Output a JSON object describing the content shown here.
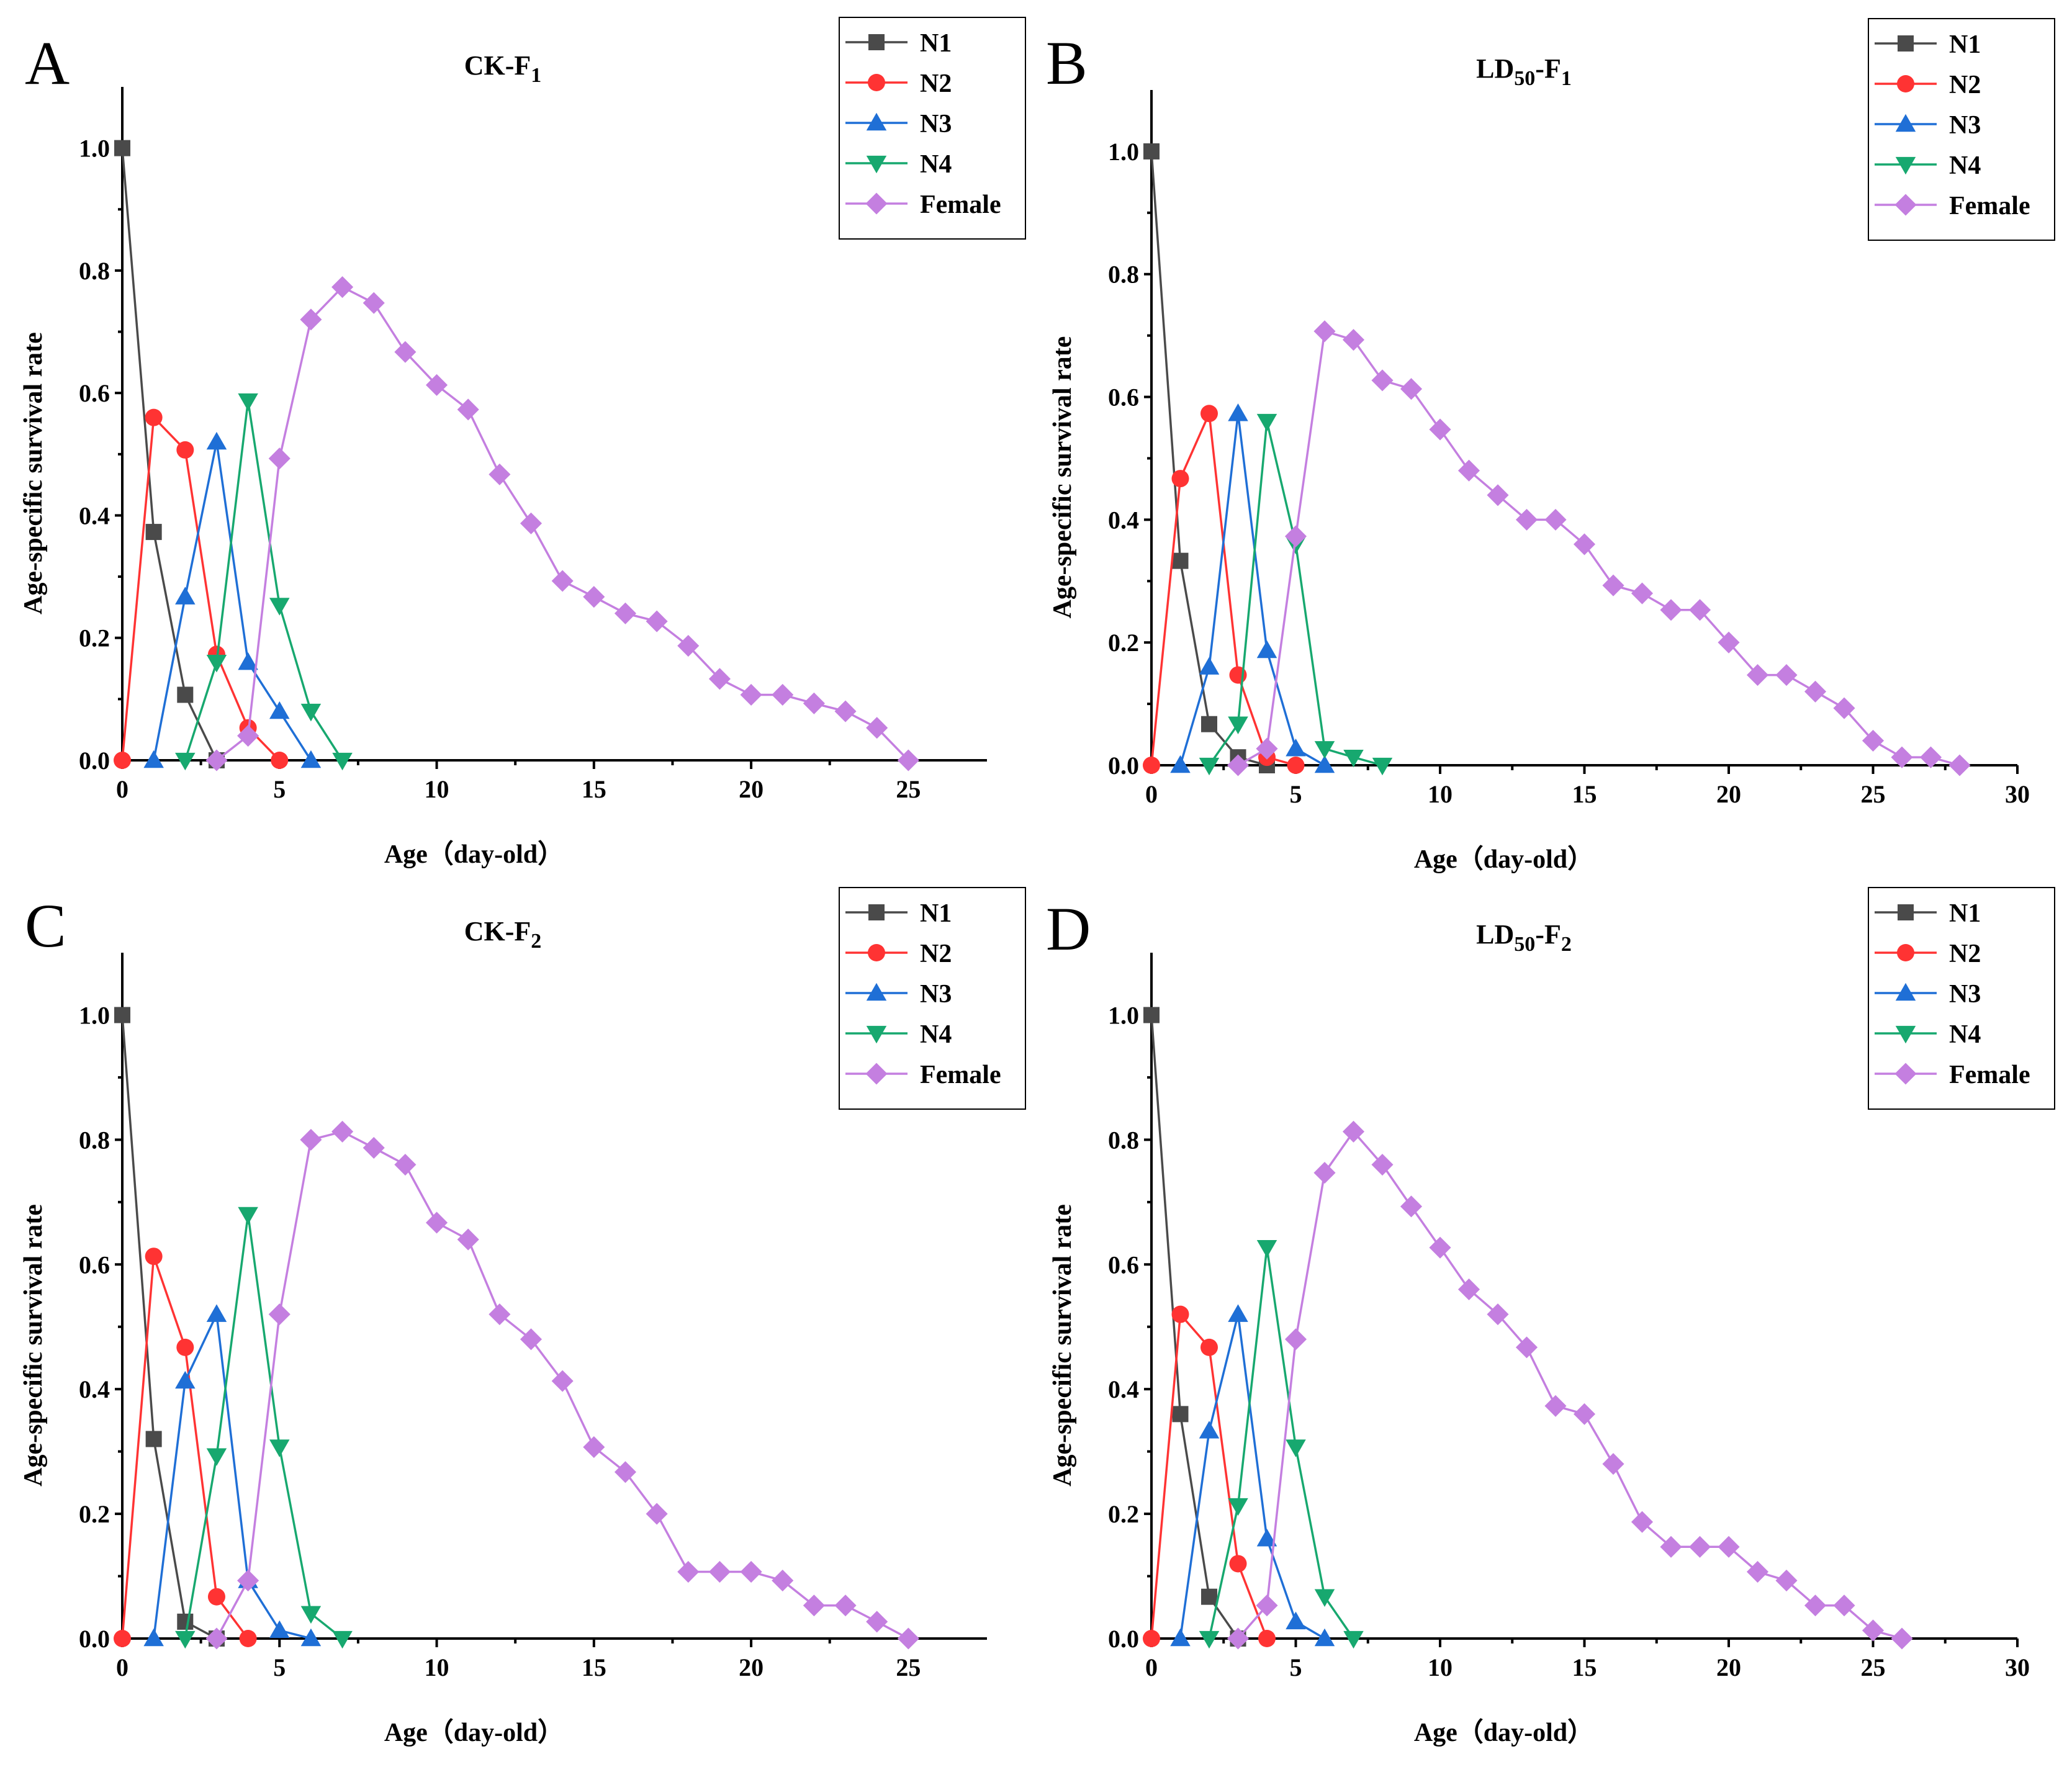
{
  "figure": {
    "y_tick_labels": [
      "0.0",
      "0.2",
      "0.4",
      "0.6",
      "0.8",
      "1.0"
    ]
  },
  "legend": {
    "entries": [
      "N1",
      "N2",
      "N3",
      "N4",
      "Female"
    ]
  },
  "series_styles": [
    {
      "name": "N1",
      "color": "#4a4a4a",
      "marker": "square"
    },
    {
      "name": "N2",
      "color": "#ff3333",
      "marker": "circle"
    },
    {
      "name": "N3",
      "color": "#1f6fd6",
      "marker": "triangle-up"
    },
    {
      "name": "N4",
      "color": "#17a86f",
      "marker": "triangle-down"
    },
    {
      "name": "Female",
      "color": "#c47fe0",
      "marker": "diamond"
    }
  ],
  "chart_data": [
    {
      "panel": "A",
      "type": "line",
      "title_main": "CK-F",
      "title_sub": "1",
      "xlabel": "Age（day-old）",
      "ylabel": "Age-specific survival rate",
      "xlim": [
        0,
        27.5
      ],
      "ylim": [
        0,
        1.1
      ],
      "x_ticks": [
        "0",
        "5",
        "10",
        "15",
        "20",
        "25"
      ],
      "legend_position": "top-right",
      "series": [
        {
          "name": "N1",
          "x": [
            0,
            1,
            2,
            3
          ],
          "values": [
            1.0,
            0.373,
            0.107,
            0.0
          ]
        },
        {
          "name": "N2",
          "x": [
            0,
            1,
            2,
            3,
            4,
            5
          ],
          "values": [
            0.0,
            0.56,
            0.507,
            0.173,
            0.053,
            0.0
          ]
        },
        {
          "name": "N3",
          "x": [
            1,
            2,
            3,
            4,
            5,
            6
          ],
          "values": [
            0.0,
            0.267,
            0.52,
            0.16,
            0.08,
            0.0
          ]
        },
        {
          "name": "N4",
          "x": [
            2,
            3,
            4,
            5,
            6,
            7
          ],
          "values": [
            0.0,
            0.16,
            0.587,
            0.253,
            0.08,
            0.0
          ]
        },
        {
          "name": "Female",
          "x": [
            3,
            4,
            5,
            6,
            7,
            8,
            9,
            10,
            11,
            12,
            13,
            14,
            15,
            16,
            17,
            18,
            19,
            20,
            21,
            22,
            23,
            24,
            25
          ],
          "values": [
            0.0,
            0.04,
            0.493,
            0.72,
            0.773,
            0.747,
            0.667,
            0.613,
            0.573,
            0.467,
            0.387,
            0.293,
            0.267,
            0.24,
            0.227,
            0.187,
            0.133,
            0.107,
            0.107,
            0.093,
            0.08,
            0.053,
            0.0
          ]
        }
      ]
    },
    {
      "panel": "B",
      "type": "line",
      "title_main": "LD",
      "title_sub": "50",
      "title_mid": "-F",
      "title_sub2": "1",
      "xlabel": "Age（day-old）",
      "ylabel": "Age-specific survival rate",
      "xlim": [
        0,
        30
      ],
      "ylim": [
        0,
        1.1
      ],
      "x_ticks": [
        "0",
        "5",
        "10",
        "15",
        "20",
        "25",
        "30"
      ],
      "legend_position": "top-right",
      "series": [
        {
          "name": "N1",
          "x": [
            0,
            1,
            2,
            3,
            4
          ],
          "values": [
            1.0,
            0.333,
            0.067,
            0.013,
            0.0
          ]
        },
        {
          "name": "N2",
          "x": [
            0,
            1,
            2,
            3,
            4,
            5
          ],
          "values": [
            0.0,
            0.467,
            0.573,
            0.147,
            0.013,
            0.0
          ]
        },
        {
          "name": "N3",
          "x": [
            1,
            2,
            3,
            4,
            5,
            6
          ],
          "values": [
            0.0,
            0.16,
            0.573,
            0.187,
            0.027,
            0.0
          ]
        },
        {
          "name": "N4",
          "x": [
            2,
            3,
            4,
            5,
            6,
            7,
            8
          ],
          "values": [
            0.0,
            0.067,
            0.56,
            0.36,
            0.027,
            0.013,
            0.0
          ]
        },
        {
          "name": "Female",
          "x": [
            3,
            4,
            5,
            6,
            7,
            8,
            9,
            10,
            11,
            12,
            13,
            14,
            15,
            16,
            17,
            18,
            19,
            20,
            21,
            22,
            23,
            24,
            25,
            26,
            27,
            28
          ],
          "values": [
            0.0,
            0.027,
            0.373,
            0.707,
            0.693,
            0.627,
            0.613,
            0.547,
            0.48,
            0.44,
            0.4,
            0.4,
            0.36,
            0.293,
            0.28,
            0.253,
            0.253,
            0.2,
            0.147,
            0.147,
            0.12,
            0.093,
            0.04,
            0.013,
            0.013,
            0.0
          ]
        }
      ]
    },
    {
      "panel": "C",
      "type": "line",
      "title_main": "CK-F",
      "title_sub": "2",
      "xlabel": "Age（day-old）",
      "ylabel": "Age-specific survival rate",
      "xlim": [
        0,
        27.5
      ],
      "ylim": [
        0,
        1.1
      ],
      "x_ticks": [
        "0",
        "5",
        "10",
        "15",
        "20",
        "25"
      ],
      "legend_position": "top-right",
      "series": [
        {
          "name": "N1",
          "x": [
            0,
            1,
            2,
            3
          ],
          "values": [
            1.0,
            0.32,
            0.027,
            0.0
          ]
        },
        {
          "name": "N2",
          "x": [
            0,
            1,
            2,
            3,
            4
          ],
          "values": [
            0.0,
            0.613,
            0.467,
            0.067,
            0.0
          ]
        },
        {
          "name": "N3",
          "x": [
            1,
            2,
            3,
            4,
            5,
            6
          ],
          "values": [
            0.0,
            0.413,
            0.52,
            0.093,
            0.013,
            0.0
          ]
        },
        {
          "name": "N4",
          "x": [
            2,
            3,
            4,
            5,
            6,
            7
          ],
          "values": [
            0.0,
            0.293,
            0.68,
            0.307,
            0.04,
            0.0
          ]
        },
        {
          "name": "Female",
          "x": [
            3,
            4,
            5,
            6,
            7,
            8,
            9,
            10,
            11,
            12,
            13,
            14,
            15,
            16,
            17,
            18,
            19,
            20,
            21,
            22,
            23,
            24,
            25
          ],
          "values": [
            0.0,
            0.093,
            0.52,
            0.8,
            0.813,
            0.787,
            0.76,
            0.667,
            0.64,
            0.52,
            0.48,
            0.413,
            0.307,
            0.267,
            0.2,
            0.107,
            0.107,
            0.107,
            0.093,
            0.053,
            0.053,
            0.027,
            0.0
          ]
        }
      ]
    },
    {
      "panel": "D",
      "type": "line",
      "title_main": "LD",
      "title_sub": "50",
      "title_mid": "-F",
      "title_sub2": "2",
      "xlabel": "Age（day-old）",
      "ylabel": "Age-specific survival rate",
      "xlim": [
        0,
        30
      ],
      "ylim": [
        0,
        1.1
      ],
      "x_ticks": [
        "0",
        "5",
        "10",
        "15",
        "20",
        "25",
        "30"
      ],
      "legend_position": "top-right",
      "series": [
        {
          "name": "N1",
          "x": [
            0,
            1,
            2,
            3
          ],
          "values": [
            1.0,
            0.36,
            0.067,
            0.0
          ]
        },
        {
          "name": "N2",
          "x": [
            0,
            1,
            2,
            3,
            4
          ],
          "values": [
            0.0,
            0.52,
            0.467,
            0.12,
            0.0
          ]
        },
        {
          "name": "N3",
          "x": [
            1,
            2,
            3,
            4,
            5,
            6
          ],
          "values": [
            0.0,
            0.333,
            0.52,
            0.16,
            0.027,
            0.0
          ]
        },
        {
          "name": "N4",
          "x": [
            2,
            3,
            4,
            5,
            6,
            7
          ],
          "values": [
            0.0,
            0.213,
            0.627,
            0.307,
            0.067,
            0.0
          ]
        },
        {
          "name": "Female",
          "x": [
            3,
            4,
            5,
            6,
            7,
            8,
            9,
            10,
            11,
            12,
            13,
            14,
            15,
            16,
            17,
            18,
            19,
            20,
            21,
            22,
            23,
            24,
            25,
            26
          ],
          "values": [
            0.0,
            0.053,
            0.48,
            0.747,
            0.813,
            0.76,
            0.693,
            0.627,
            0.56,
            0.52,
            0.467,
            0.373,
            0.36,
            0.28,
            0.187,
            0.147,
            0.147,
            0.147,
            0.107,
            0.093,
            0.053,
            0.053,
            0.013,
            0.0
          ]
        }
      ]
    }
  ]
}
